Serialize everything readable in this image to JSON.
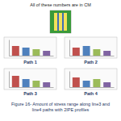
{
  "header": {
    "note": "All of these numbers are in CM"
  },
  "figure": {
    "caption_lines": [
      "Figure 16- Amount of stress range along line3 and",
      "line4 paths with 2IPE profiles"
    ]
  },
  "chart_data": [
    {
      "type": "bar",
      "title": "Path 1",
      "categories": [
        null,
        null,
        null,
        null
      ],
      "values": [
        6,
        5,
        4,
        3
      ],
      "colors": [
        "#c0504d",
        "#4f81bd",
        "#9bbb59",
        "#8064a2"
      ],
      "ylim": [
        0,
        10
      ],
      "tick_labels": false
    },
    {
      "type": "bar",
      "title": "Path 2",
      "categories": [
        null,
        null,
        null,
        null
      ],
      "values": [
        5,
        6,
        4,
        3
      ],
      "colors": [
        "#c0504d",
        "#4f81bd",
        "#9bbb59",
        "#8064a2"
      ],
      "ylim": [
        0,
        10
      ],
      "tick_labels": false
    },
    {
      "type": "bar",
      "title": "Path 3",
      "categories": [
        null,
        null,
        null,
        null
      ],
      "values": [
        7,
        5,
        4,
        3
      ],
      "colors": [
        "#c0504d",
        "#4f81bd",
        "#9bbb59",
        "#8064a2"
      ],
      "ylim": [
        0,
        10
      ],
      "tick_labels": false
    },
    {
      "type": "bar",
      "title": "Path 4",
      "categories": [
        null,
        null,
        null,
        null
      ],
      "values": [
        6,
        4,
        5,
        3
      ],
      "colors": [
        "#c0504d",
        "#4f81bd",
        "#9bbb59",
        "#8064a2"
      ],
      "ylim": [
        0,
        10
      ],
      "tick_labels": false
    }
  ]
}
